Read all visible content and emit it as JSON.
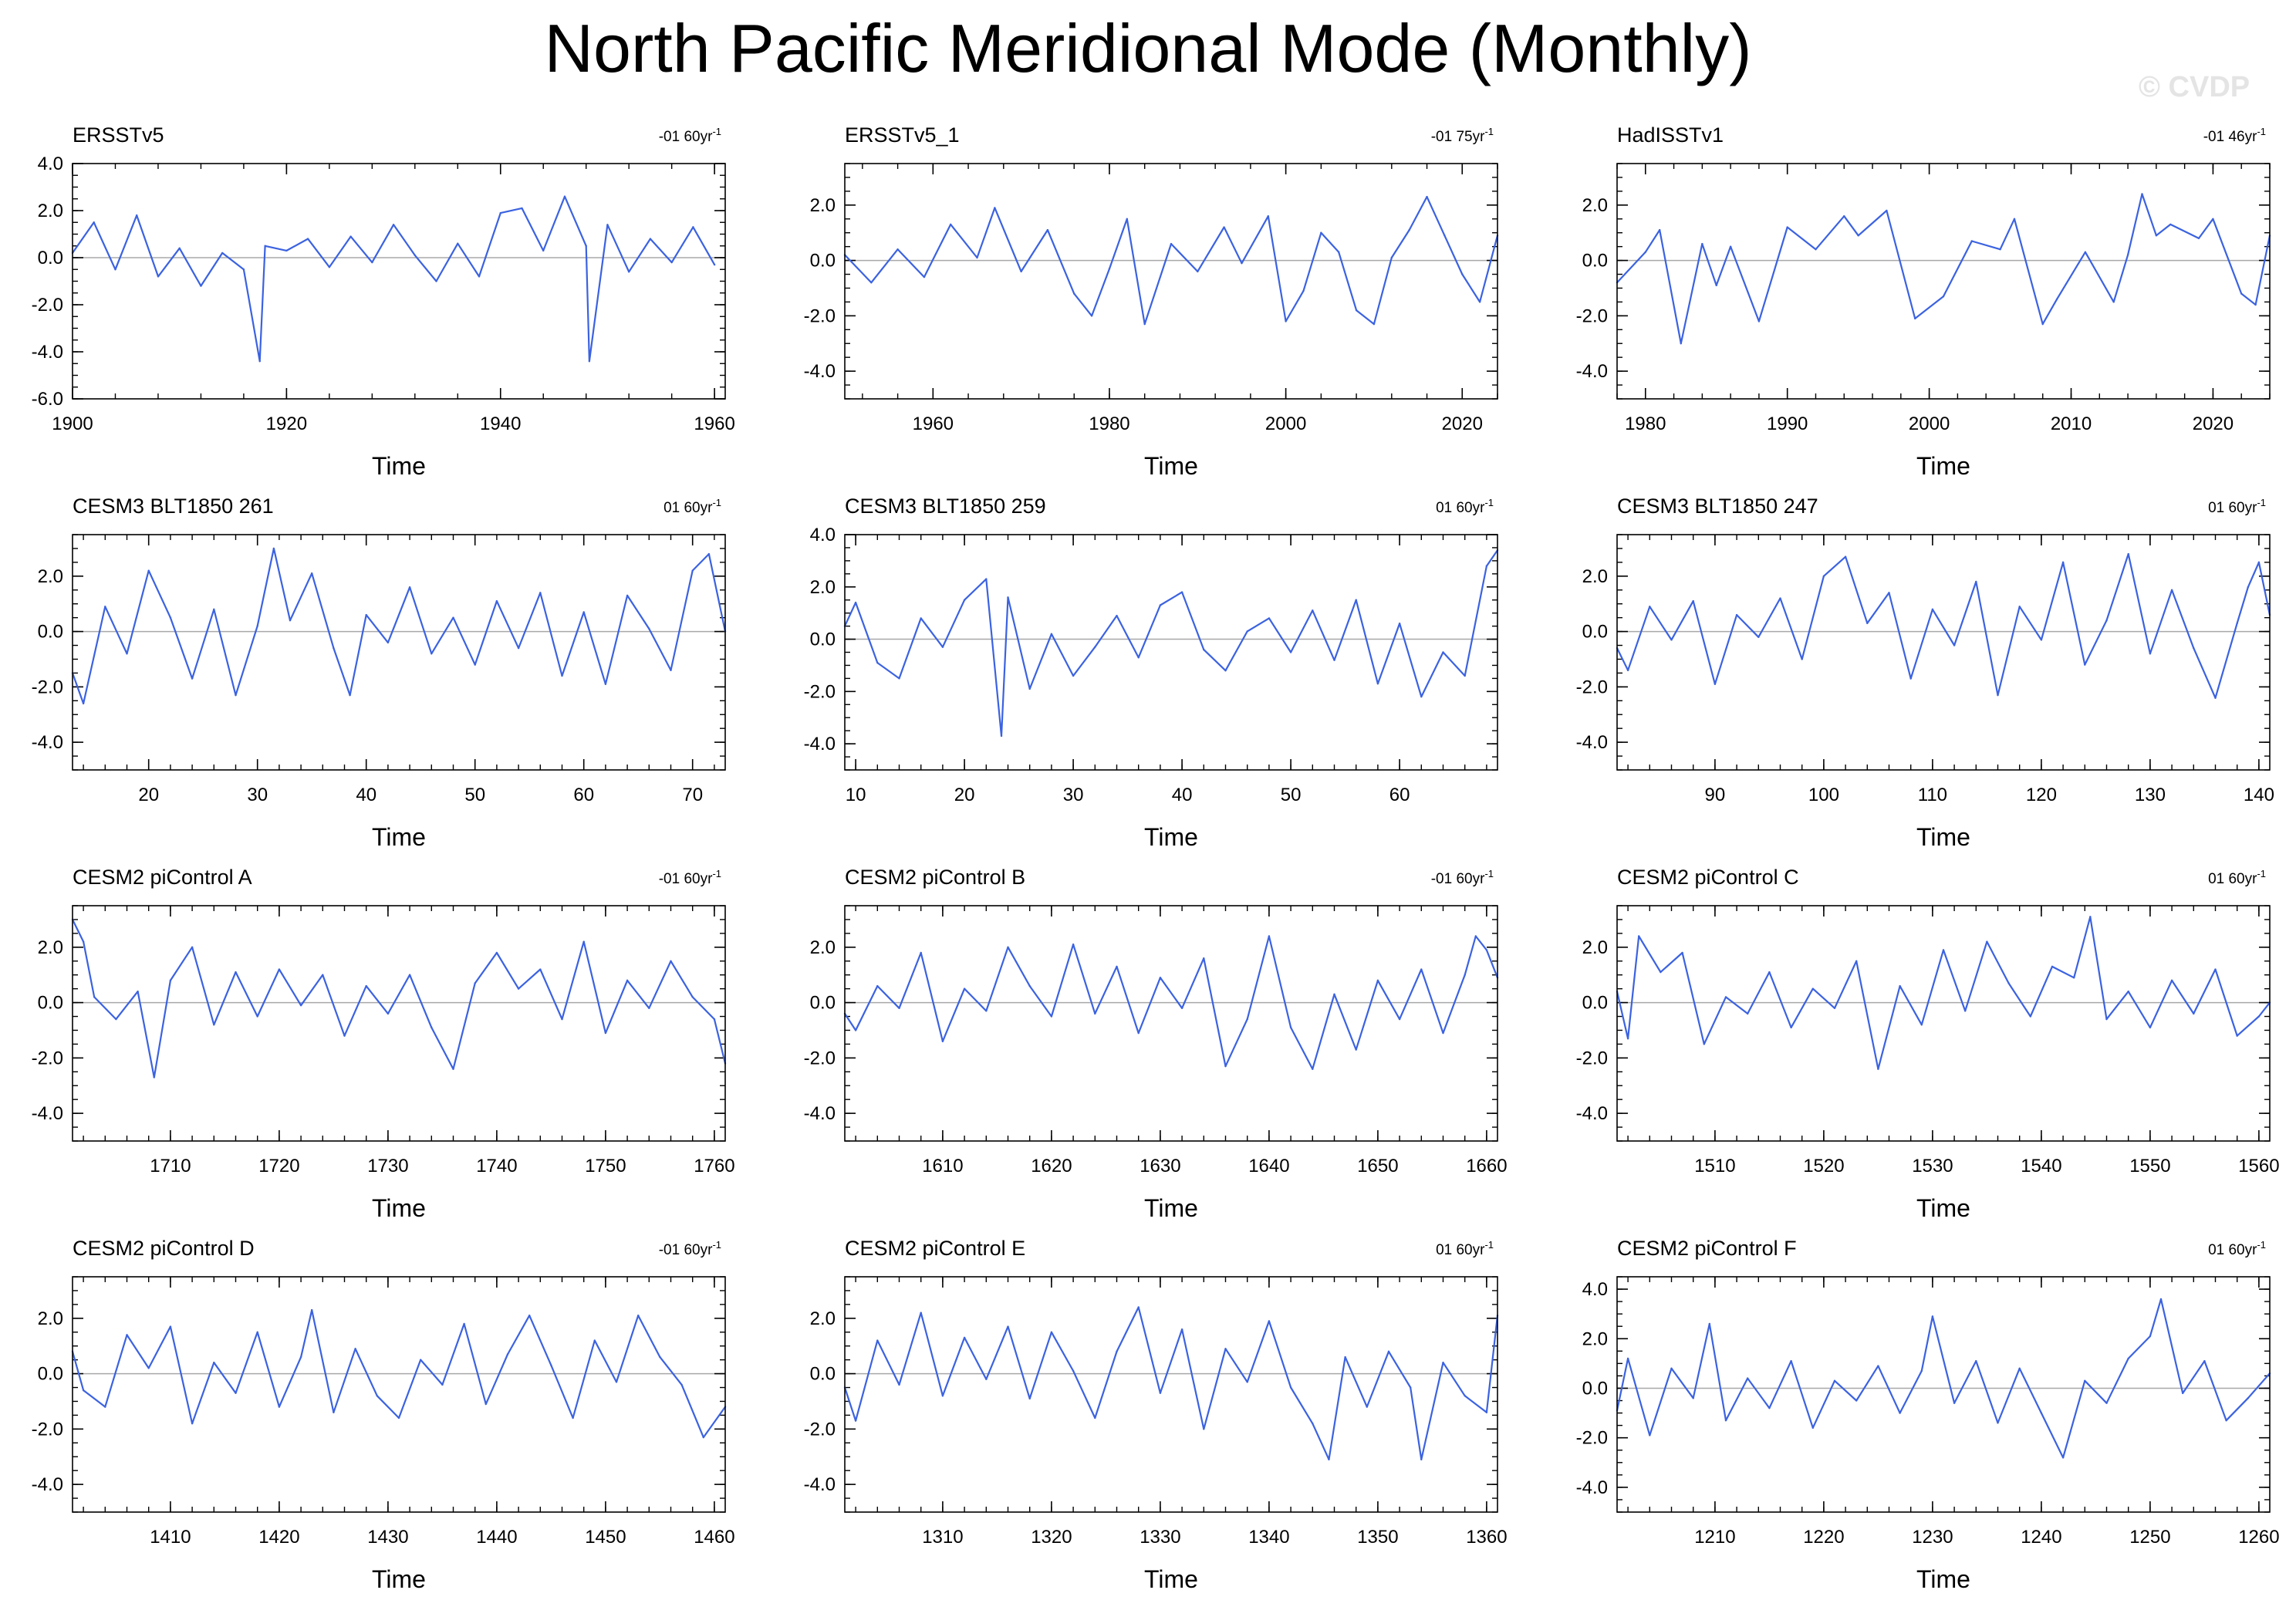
{
  "title": "North Pacific Meridional Mode (Monthly)",
  "watermark": "© CVDP",
  "colors": {
    "series": "#3b62e0",
    "zero_line": "#a8a8a8",
    "frame": "#000000",
    "watermark": "#e4e4e4"
  },
  "chart_data": [
    {
      "type": "line",
      "name": "ERSSTv5",
      "title": "ERSSTv5",
      "trend": "-01 60yr",
      "trend_unit": "-1",
      "xlabel": "Time",
      "xlim": [
        1900,
        1961
      ],
      "xticks": [
        1900,
        1920,
        1940,
        1960
      ],
      "ylim": [
        -6,
        4
      ],
      "yticks": [
        4,
        2,
        0,
        -2,
        -4,
        -6
      ],
      "ytick_labels": [
        "4.0",
        "2.0",
        "0.0",
        "-2.0",
        "-4.0",
        "-6.0"
      ],
      "x": [
        1900,
        1902,
        1904,
        1906,
        1908,
        1910,
        1912,
        1914,
        1916,
        1917.5,
        1918,
        1920,
        1922,
        1924,
        1926,
        1928,
        1930,
        1932,
        1934,
        1936,
        1938,
        1940,
        1942,
        1944,
        1946,
        1948,
        1948.3,
        1950,
        1952,
        1954,
        1956,
        1958,
        1960
      ],
      "values": [
        0.2,
        1.5,
        -0.5,
        1.8,
        -0.8,
        0.4,
        -1.2,
        0.2,
        -0.5,
        -4.4,
        0.5,
        0.3,
        0.8,
        -0.4,
        0.9,
        -0.2,
        1.4,
        0.1,
        -1.0,
        0.6,
        -0.8,
        1.9,
        2.1,
        0.3,
        2.6,
        0.5,
        -4.4,
        1.4,
        -0.6,
        0.8,
        -0.2,
        1.3,
        -0.3
      ]
    },
    {
      "type": "line",
      "name": "ERSSTv5_1",
      "title": "ERSSTv5_1",
      "trend": "-01 75yr",
      "trend_unit": "-1",
      "xlabel": "Time",
      "xlim": [
        1950,
        2024
      ],
      "xticks": [
        1960,
        1980,
        2000,
        2020
      ],
      "ylim": [
        -5,
        3.5
      ],
      "yticks": [
        2,
        0,
        -2,
        -4
      ],
      "ytick_labels": [
        "2.0",
        "0.0",
        "-2.0",
        "-4.0"
      ],
      "x": [
        1950,
        1953,
        1956,
        1959,
        1962,
        1965,
        1967,
        1970,
        1973,
        1976,
        1978,
        1980,
        1982,
        1984,
        1987,
        1990,
        1993,
        1995,
        1998,
        2000,
        2002,
        2004,
        2006,
        2008,
        2010,
        2012,
        2014,
        2016,
        2018,
        2020,
        2022,
        2024
      ],
      "values": [
        0.2,
        -0.8,
        0.4,
        -0.6,
        1.3,
        0.1,
        1.9,
        -0.4,
        1.1,
        -1.2,
        -2.0,
        -0.3,
        1.5,
        -2.3,
        0.6,
        -0.4,
        1.2,
        -0.1,
        1.6,
        -2.2,
        -1.1,
        1.0,
        0.3,
        -1.8,
        -2.3,
        0.1,
        1.1,
        2.3,
        0.9,
        -0.5,
        -1.5,
        0.9
      ]
    },
    {
      "type": "line",
      "name": "HadISSTv1",
      "title": "HadISSTv1",
      "trend": "-01 46yr",
      "trend_unit": "-1",
      "xlabel": "Time",
      "xlim": [
        1978,
        2024
      ],
      "xticks": [
        1980,
        1990,
        2000,
        2010,
        2020
      ],
      "ylim": [
        -5,
        3.5
      ],
      "yticks": [
        2,
        0,
        -2,
        -4
      ],
      "ytick_labels": [
        "2.0",
        "0.0",
        "-2.0",
        "-4.0"
      ],
      "x": [
        1978,
        1980,
        1981,
        1982.5,
        1984,
        1985,
        1986,
        1988,
        1990,
        1992,
        1994,
        1995,
        1997,
        1999,
        2001,
        2003,
        2005,
        2006,
        2008,
        2009,
        2011,
        2013,
        2014,
        2015,
        2016,
        2017,
        2019,
        2020,
        2022,
        2023,
        2024
      ],
      "values": [
        -0.8,
        0.3,
        1.1,
        -3.0,
        0.6,
        -0.9,
        0.5,
        -2.2,
        1.2,
        0.4,
        1.6,
        0.9,
        1.8,
        -2.1,
        -1.3,
        0.7,
        0.4,
        1.5,
        -2.3,
        -1.4,
        0.3,
        -1.5,
        0.2,
        2.4,
        0.9,
        1.3,
        0.8,
        1.5,
        -1.2,
        -1.6,
        0.9
      ]
    },
    {
      "type": "line",
      "name": "CESM3 BLT1850 261",
      "title": "CESM3 BLT1850 261",
      "trend": "01 60yr",
      "trend_unit": "-1",
      "xlabel": "Time",
      "xlim": [
        13,
        73
      ],
      "xticks": [
        20,
        30,
        40,
        50,
        60,
        70
      ],
      "ylim": [
        -5,
        3.5
      ],
      "yticks": [
        2,
        0,
        -2,
        -4
      ],
      "ytick_labels": [
        "2.0",
        "0.0",
        "-2.0",
        "-4.0"
      ],
      "x": [
        13,
        14,
        16,
        18,
        20,
        22,
        24,
        26,
        28,
        30,
        31.5,
        33,
        35,
        37,
        38.5,
        40,
        42,
        44,
        46,
        48,
        50,
        52,
        54,
        56,
        58,
        60,
        62,
        64,
        66,
        68,
        70,
        71.5,
        73
      ],
      "values": [
        -1.5,
        -2.6,
        0.9,
        -0.8,
        2.2,
        0.5,
        -1.7,
        0.8,
        -2.3,
        0.2,
        3.0,
        0.4,
        2.1,
        -0.6,
        -2.3,
        0.6,
        -0.4,
        1.6,
        -0.8,
        0.5,
        -1.2,
        1.1,
        -0.6,
        1.4,
        -1.6,
        0.7,
        -1.9,
        1.3,
        0.1,
        -1.4,
        2.2,
        2.8,
        0.0
      ]
    },
    {
      "type": "line",
      "name": "CESM3 BLT1850 259",
      "title": "CESM3 BLT1850 259",
      "trend": "01 60yr",
      "trend_unit": "-1",
      "xlabel": "Time",
      "xlim": [
        9,
        69
      ],
      "xticks": [
        10,
        20,
        30,
        40,
        50,
        60
      ],
      "ylim": [
        -5,
        4
      ],
      "yticks": [
        4,
        2,
        0,
        -2,
        -4
      ],
      "ytick_labels": [
        "4.0",
        "2.0",
        "0.0",
        "-2.0",
        "-4.0"
      ],
      "x": [
        9,
        10,
        12,
        14,
        16,
        18,
        20,
        22,
        23.4,
        24,
        26,
        28,
        30,
        32,
        34,
        36,
        38,
        40,
        42,
        44,
        46,
        48,
        50,
        52,
        54,
        56,
        58,
        60,
        62,
        64,
        66,
        68,
        69
      ],
      "values": [
        0.5,
        1.4,
        -0.9,
        -1.5,
        0.8,
        -0.3,
        1.5,
        2.3,
        -3.7,
        1.6,
        -1.9,
        0.2,
        -1.4,
        -0.3,
        0.9,
        -0.7,
        1.3,
        1.8,
        -0.4,
        -1.2,
        0.3,
        0.8,
        -0.5,
        1.1,
        -0.8,
        1.5,
        -1.7,
        0.6,
        -2.2,
        -0.5,
        -1.4,
        2.8,
        3.4
      ]
    },
    {
      "type": "line",
      "name": "CESM3 BLT1850 247",
      "title": "CESM3 BLT1850 247",
      "trend": "01 60yr",
      "trend_unit": "-1",
      "xlabel": "Time",
      "xlim": [
        81,
        141
      ],
      "xticks": [
        90,
        100,
        110,
        120,
        130,
        140
      ],
      "ylim": [
        -5,
        3.5
      ],
      "yticks": [
        2,
        0,
        -2,
        -4
      ],
      "ytick_labels": [
        "2.0",
        "0.0",
        "-2.0",
        "-4.0"
      ],
      "x": [
        81,
        82,
        84,
        86,
        88,
        90,
        92,
        94,
        96,
        98,
        100,
        102,
        104,
        106,
        108,
        110,
        112,
        114,
        116,
        118,
        120,
        122,
        124,
        126,
        128,
        130,
        132,
        134,
        136,
        138,
        139,
        140,
        141
      ],
      "values": [
        -0.6,
        -1.4,
        0.9,
        -0.3,
        1.1,
        -1.9,
        0.6,
        -0.2,
        1.2,
        -1.0,
        2.0,
        2.7,
        0.3,
        1.4,
        -1.7,
        0.8,
        -0.5,
        1.8,
        -2.3,
        0.9,
        -0.3,
        2.5,
        -1.2,
        0.4,
        2.8,
        -0.8,
        1.5,
        -0.6,
        -2.4,
        0.3,
        1.6,
        2.5,
        0.6
      ]
    },
    {
      "type": "line",
      "name": "CESM2 piControl A",
      "title": "CESM2 piControl A",
      "trend": "-01 60yr",
      "trend_unit": "-1",
      "xlabel": "Time",
      "xlim": [
        1701,
        1761
      ],
      "xticks": [
        1710,
        1720,
        1730,
        1740,
        1750,
        1760
      ],
      "ylim": [
        -5,
        3.5
      ],
      "yticks": [
        2,
        0,
        -2,
        -4
      ],
      "ytick_labels": [
        "2.0",
        "0.0",
        "-2.0",
        "-4.0"
      ],
      "x": [
        1701,
        1702,
        1703,
        1705,
        1707,
        1708.5,
        1710,
        1712,
        1714,
        1716,
        1718,
        1720,
        1722,
        1724,
        1726,
        1728,
        1730,
        1732,
        1734,
        1736,
        1738,
        1740,
        1742,
        1744,
        1746,
        1748,
        1750,
        1752,
        1754,
        1756,
        1758,
        1760,
        1761
      ],
      "values": [
        3.0,
        2.2,
        0.2,
        -0.6,
        0.4,
        -2.7,
        0.8,
        2.0,
        -0.8,
        1.1,
        -0.5,
        1.2,
        -0.1,
        1.0,
        -1.2,
        0.6,
        -0.4,
        1.0,
        -0.9,
        -2.4,
        0.7,
        1.8,
        0.5,
        1.2,
        -0.6,
        2.2,
        -1.1,
        0.8,
        -0.2,
        1.5,
        0.2,
        -0.6,
        -2.2
      ]
    },
    {
      "type": "line",
      "name": "CESM2 piControl B",
      "title": "CESM2 piControl B",
      "trend": "-01 60yr",
      "trend_unit": "-1",
      "xlabel": "Time",
      "xlim": [
        1601,
        1661
      ],
      "xticks": [
        1610,
        1620,
        1630,
        1640,
        1650,
        1660
      ],
      "ylim": [
        -5,
        3.5
      ],
      "yticks": [
        2,
        0,
        -2,
        -4
      ],
      "ytick_labels": [
        "2.0",
        "0.0",
        "-2.0",
        "-4.0"
      ],
      "x": [
        1601,
        1602,
        1604,
        1606,
        1608,
        1610,
        1612,
        1614,
        1616,
        1618,
        1620,
        1622,
        1624,
        1626,
        1628,
        1630,
        1632,
        1634,
        1636,
        1638,
        1640,
        1642,
        1644,
        1646,
        1648,
        1650,
        1652,
        1654,
        1656,
        1658,
        1659,
        1660,
        1661
      ],
      "values": [
        -0.4,
        -1.0,
        0.6,
        -0.2,
        1.8,
        -1.4,
        0.5,
        -0.3,
        2.0,
        0.6,
        -0.5,
        2.1,
        -0.4,
        1.3,
        -1.1,
        0.9,
        -0.2,
        1.6,
        -2.3,
        -0.6,
        2.4,
        -0.9,
        -2.4,
        0.3,
        -1.7,
        0.8,
        -0.6,
        1.2,
        -1.1,
        1.0,
        2.4,
        1.9,
        0.9
      ]
    },
    {
      "type": "line",
      "name": "CESM2 piControl C",
      "title": "CESM2 piControl C",
      "trend": "01 60yr",
      "trend_unit": "-1",
      "xlabel": "Time",
      "xlim": [
        1501,
        1561
      ],
      "xticks": [
        1510,
        1520,
        1530,
        1540,
        1550,
        1560
      ],
      "ylim": [
        -5,
        3.5
      ],
      "yticks": [
        2,
        0,
        -2,
        -4
      ],
      "ytick_labels": [
        "2.0",
        "0.0",
        "-2.0",
        "-4.0"
      ],
      "x": [
        1501,
        1502,
        1503,
        1505,
        1507,
        1509,
        1511,
        1513,
        1515,
        1517,
        1519,
        1521,
        1523,
        1525,
        1527,
        1529,
        1531,
        1533,
        1535,
        1537,
        1539,
        1541,
        1543,
        1544.5,
        1546,
        1548,
        1550,
        1552,
        1554,
        1556,
        1558,
        1560,
        1561
      ],
      "values": [
        0.4,
        -1.3,
        2.4,
        1.1,
        1.8,
        -1.5,
        0.2,
        -0.4,
        1.1,
        -0.9,
        0.5,
        -0.2,
        1.5,
        -2.4,
        0.6,
        -0.8,
        1.9,
        -0.3,
        2.2,
        0.7,
        -0.5,
        1.3,
        0.9,
        3.1,
        -0.6,
        0.4,
        -0.9,
        0.8,
        -0.4,
        1.2,
        -1.2,
        -0.5,
        0.0
      ]
    },
    {
      "type": "line",
      "name": "CESM2 piControl D",
      "title": "CESM2 piControl D",
      "trend": "-01 60yr",
      "trend_unit": "-1",
      "xlabel": "Time",
      "xlim": [
        1401,
        1461
      ],
      "xticks": [
        1410,
        1420,
        1430,
        1440,
        1450,
        1460
      ],
      "ylim": [
        -5,
        3.5
      ],
      "yticks": [
        2,
        0,
        -2,
        -4
      ],
      "ytick_labels": [
        "2.0",
        "0.0",
        "-2.0",
        "-4.0"
      ],
      "x": [
        1401,
        1402,
        1404,
        1406,
        1408,
        1410,
        1412,
        1414,
        1416,
        1418,
        1420,
        1422,
        1423,
        1425,
        1427,
        1429,
        1431,
        1433,
        1435,
        1437,
        1439,
        1441,
        1443,
        1445,
        1447,
        1449,
        1451,
        1453,
        1455,
        1457,
        1459,
        1461
      ],
      "values": [
        0.8,
        -0.6,
        -1.2,
        1.4,
        0.2,
        1.7,
        -1.8,
        0.4,
        -0.7,
        1.5,
        -1.2,
        0.6,
        2.3,
        -1.4,
        0.9,
        -0.8,
        -1.6,
        0.5,
        -0.4,
        1.8,
        -1.1,
        0.7,
        2.1,
        0.3,
        -1.6,
        1.2,
        -0.3,
        2.1,
        0.6,
        -0.4,
        -2.3,
        -1.2
      ]
    },
    {
      "type": "line",
      "name": "CESM2 piControl E",
      "title": "CESM2 piControl E",
      "trend": "01 60yr",
      "trend_unit": "-1",
      "xlabel": "Time",
      "xlim": [
        1301,
        1361
      ],
      "xticks": [
        1310,
        1320,
        1330,
        1340,
        1350,
        1360
      ],
      "ylim": [
        -5,
        3.5
      ],
      "yticks": [
        2,
        0,
        -2,
        -4
      ],
      "ytick_labels": [
        "2.0",
        "0.0",
        "-2.0",
        "-4.0"
      ],
      "x": [
        1301,
        1302,
        1304,
        1306,
        1308,
        1310,
        1312,
        1314,
        1316,
        1318,
        1320,
        1322,
        1324,
        1326,
        1328,
        1330,
        1332,
        1334,
        1336,
        1338,
        1340,
        1342,
        1344,
        1345.5,
        1347,
        1349,
        1351,
        1353,
        1354,
        1356,
        1358,
        1360,
        1361
      ],
      "values": [
        -0.5,
        -1.7,
        1.2,
        -0.4,
        2.2,
        -0.8,
        1.3,
        -0.2,
        1.7,
        -0.9,
        1.5,
        0.1,
        -1.6,
        0.8,
        2.4,
        -0.7,
        1.6,
        -2.0,
        0.9,
        -0.3,
        1.9,
        -0.5,
        -1.8,
        -3.1,
        0.6,
        -1.2,
        0.8,
        -0.5,
        -3.1,
        0.4,
        -0.8,
        -1.4,
        2.1
      ]
    },
    {
      "type": "line",
      "name": "CESM2 piControl F",
      "title": "CESM2 piControl F",
      "trend": "01 60yr",
      "trend_unit": "-1",
      "xlabel": "Time",
      "xlim": [
        1201,
        1261
      ],
      "xticks": [
        1210,
        1220,
        1230,
        1240,
        1250,
        1260
      ],
      "ylim": [
        -5,
        4.5
      ],
      "yticks": [
        4,
        2,
        0,
        -2,
        -4
      ],
      "ytick_labels": [
        "4.0",
        "2.0",
        "0.0",
        "-2.0",
        "-4.0"
      ],
      "x": [
        1201,
        1202,
        1204,
        1206,
        1208,
        1209.5,
        1211,
        1213,
        1215,
        1217,
        1219,
        1221,
        1223,
        1225,
        1227,
        1229,
        1230,
        1232,
        1234,
        1236,
        1238,
        1240,
        1242,
        1244,
        1246,
        1248,
        1250,
        1251,
        1253,
        1255,
        1257,
        1259,
        1261
      ],
      "values": [
        -0.9,
        1.2,
        -1.9,
        0.8,
        -0.4,
        2.6,
        -1.3,
        0.4,
        -0.8,
        1.1,
        -1.6,
        0.3,
        -0.5,
        0.9,
        -1.0,
        0.7,
        2.9,
        -0.6,
        1.1,
        -1.4,
        0.8,
        -1.0,
        -2.8,
        0.3,
        -0.6,
        1.2,
        2.1,
        3.6,
        -0.2,
        1.1,
        -1.3,
        -0.4,
        0.6
      ]
    }
  ]
}
